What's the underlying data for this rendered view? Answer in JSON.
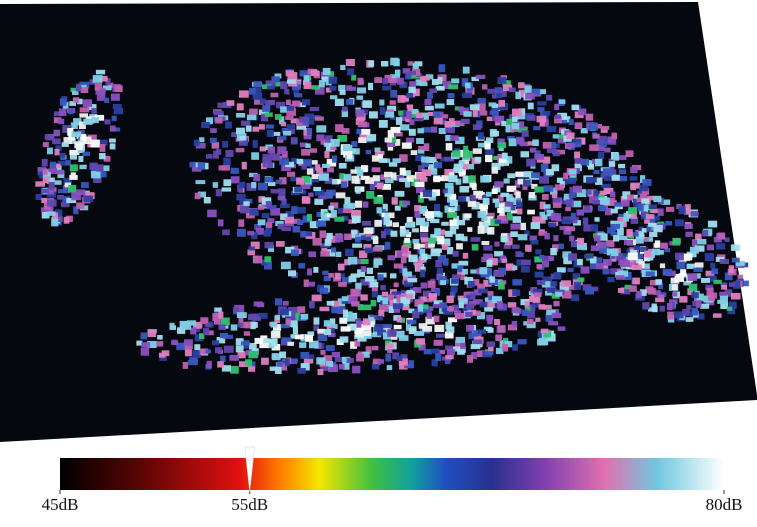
{
  "colorbar": {
    "range": [
      45,
      80
    ],
    "ticks": [
      {
        "value": 45,
        "label": "45dB"
      },
      {
        "value": 55,
        "label": "55dB"
      },
      {
        "value": 80,
        "label": "80dB"
      }
    ],
    "marker": 55
  }
}
